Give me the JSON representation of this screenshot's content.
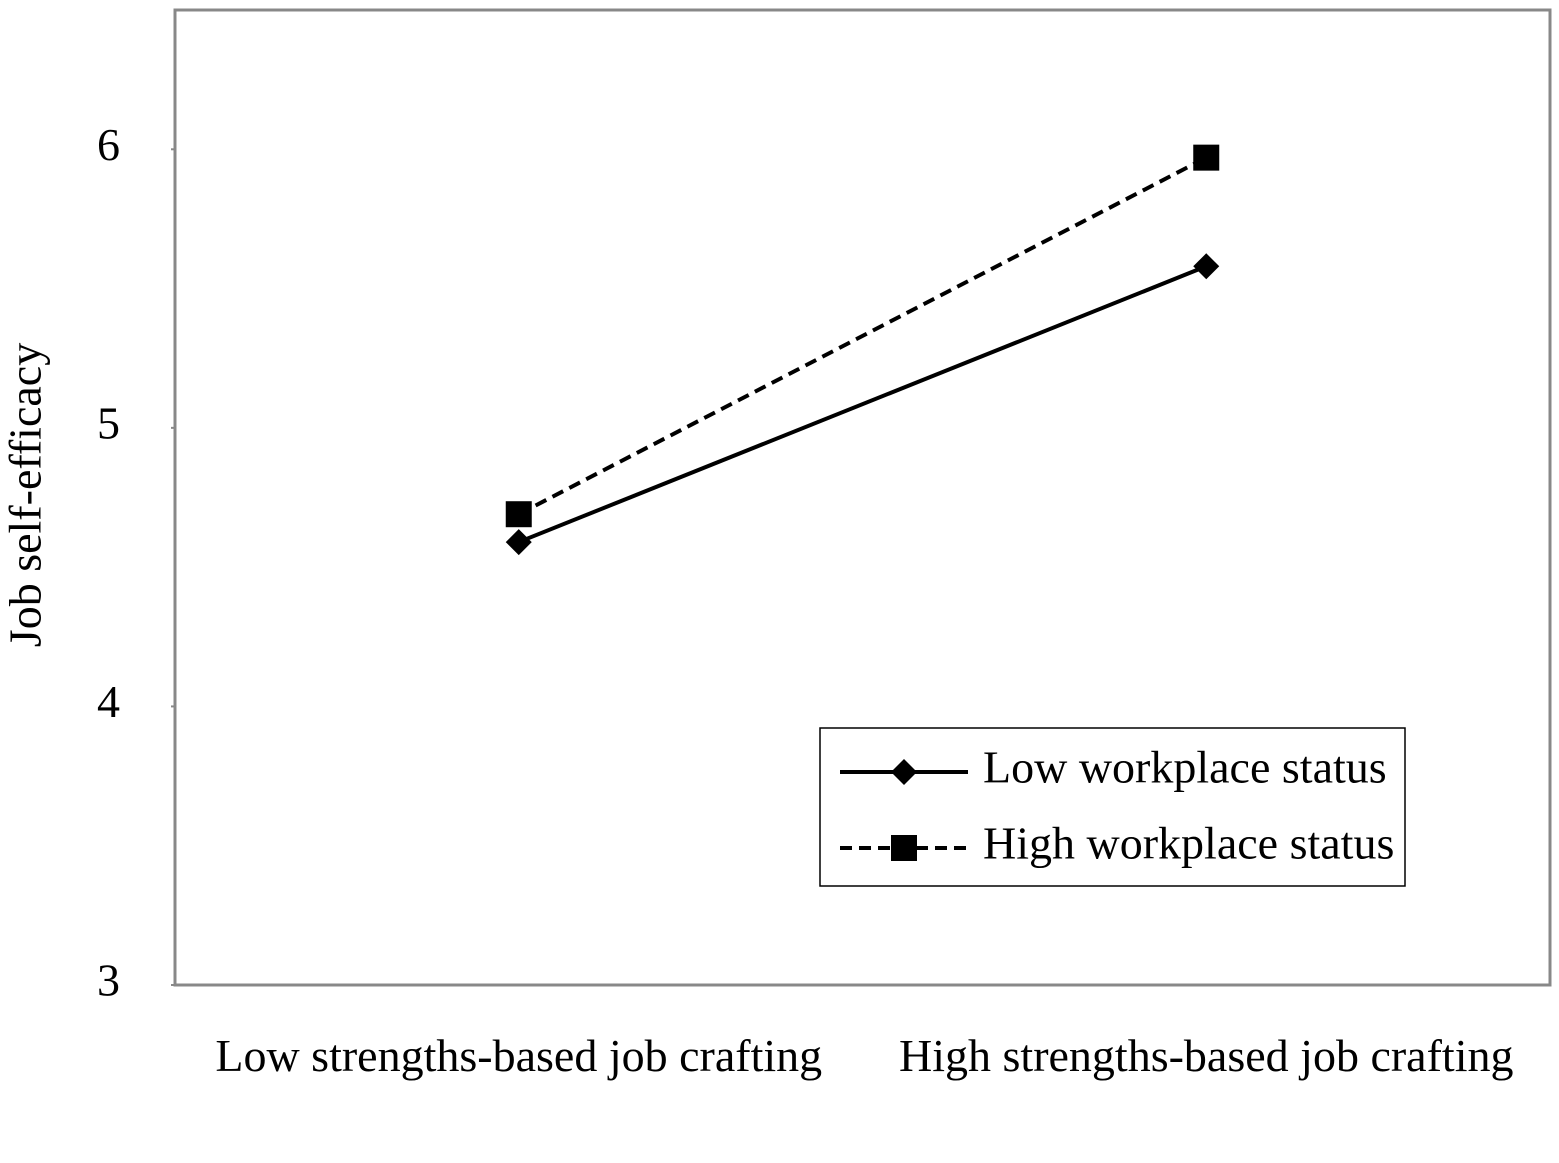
{
  "chart_data": {
    "type": "line",
    "ylabel": "Job self-efficacy",
    "categories": [
      "Low strengths-based job crafting",
      "High strengths-based job crafting"
    ],
    "series": [
      {
        "name": "Low workplace status",
        "color": "#000000",
        "linestyle": "solid",
        "marker": "diamond",
        "values": [
          4.59,
          5.58
        ]
      },
      {
        "name": "High workplace status",
        "color": "#000000",
        "linestyle": "dashed",
        "marker": "square",
        "values": [
          4.69,
          5.97
        ]
      }
    ],
    "ylim": [
      3,
      6.5
    ],
    "yticks": [
      3,
      4,
      5,
      6
    ],
    "grid": false,
    "legend": "lower right"
  }
}
